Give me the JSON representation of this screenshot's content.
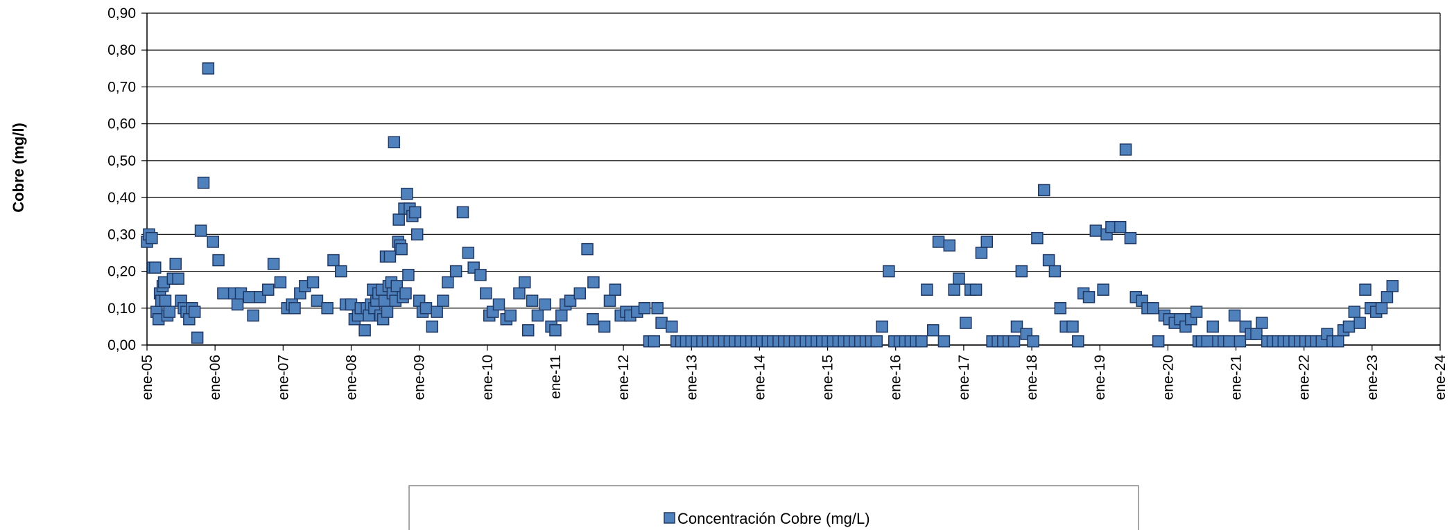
{
  "chart_data": {
    "type": "scatter",
    "ylabel": "Cobre (mg/l)",
    "xlabel": "",
    "ylim": [
      0,
      0.9
    ],
    "y_tick_labels": [
      "0,00",
      "0,10",
      "0,20",
      "0,30",
      "0,40",
      "0,50",
      "0,60",
      "0,70",
      "0,80",
      "0,90"
    ],
    "x_tick_labels": [
      "ene-05",
      "ene-06",
      "ene-07",
      "ene-08",
      "ene-09",
      "ene-10",
      "ene-11",
      "ene-12",
      "ene-13",
      "ene-14",
      "ene-15",
      "ene-16",
      "ene-17",
      "ene-18",
      "ene-19",
      "ene-20",
      "ene-21",
      "ene-22",
      "ene-23",
      "ene-24"
    ],
    "x_axis_start_year": 2005,
    "x_axis_end_year": 2024,
    "grid": "horizontal",
    "legend_position": "bottom",
    "colors": {
      "marker_fill": "#4f81bd",
      "marker_stroke": "#1f3864",
      "grid": "#000000"
    },
    "series": [
      {
        "name": "Concentración Cobre (mg/L)",
        "points": [
          [
            2005.0,
            0.28
          ],
          [
            2005.03,
            0.3
          ],
          [
            2005.07,
            0.29
          ],
          [
            2005.09,
            0.21
          ],
          [
            2005.12,
            0.21
          ],
          [
            2005.14,
            0.09
          ],
          [
            2005.17,
            0.07
          ],
          [
            2005.19,
            0.14
          ],
          [
            2005.21,
            0.12
          ],
          [
            2005.23,
            0.16
          ],
          [
            2005.25,
            0.17
          ],
          [
            2005.27,
            0.12
          ],
          [
            2005.3,
            0.08
          ],
          [
            2005.33,
            0.09
          ],
          [
            2005.38,
            0.18
          ],
          [
            2005.42,
            0.22
          ],
          [
            2005.46,
            0.18
          ],
          [
            2005.5,
            0.12
          ],
          [
            2005.54,
            0.1
          ],
          [
            2005.58,
            0.09
          ],
          [
            2005.62,
            0.07
          ],
          [
            2005.66,
            0.1
          ],
          [
            2005.7,
            0.09
          ],
          [
            2005.74,
            0.02
          ],
          [
            2005.79,
            0.31
          ],
          [
            2005.83,
            0.44
          ],
          [
            2005.9,
            0.75
          ],
          [
            2005.97,
            0.28
          ],
          [
            2006.05,
            0.23
          ],
          [
            2006.12,
            0.14
          ],
          [
            2006.28,
            0.14
          ],
          [
            2006.33,
            0.11
          ],
          [
            2006.38,
            0.14
          ],
          [
            2006.5,
            0.13
          ],
          [
            2006.56,
            0.08
          ],
          [
            2006.66,
            0.13
          ],
          [
            2006.78,
            0.15
          ],
          [
            2006.86,
            0.22
          ],
          [
            2006.96,
            0.17
          ],
          [
            2007.06,
            0.1
          ],
          [
            2007.13,
            0.11
          ],
          [
            2007.17,
            0.1
          ],
          [
            2007.25,
            0.14
          ],
          [
            2007.32,
            0.16
          ],
          [
            2007.44,
            0.17
          ],
          [
            2007.5,
            0.12
          ],
          [
            2007.65,
            0.1
          ],
          [
            2007.74,
            0.23
          ],
          [
            2007.85,
            0.2
          ],
          [
            2007.92,
            0.11
          ],
          [
            2008.0,
            0.11
          ],
          [
            2008.05,
            0.07
          ],
          [
            2008.1,
            0.08
          ],
          [
            2008.14,
            0.1
          ],
          [
            2008.2,
            0.04
          ],
          [
            2008.23,
            0.1
          ],
          [
            2008.26,
            0.08
          ],
          [
            2008.29,
            0.11
          ],
          [
            2008.32,
            0.15
          ],
          [
            2008.34,
            0.1
          ],
          [
            2008.37,
            0.12
          ],
          [
            2008.4,
            0.14
          ],
          [
            2008.43,
            0.08
          ],
          [
            2008.45,
            0.15
          ],
          [
            2008.47,
            0.07
          ],
          [
            2008.49,
            0.12
          ],
          [
            2008.51,
            0.24
          ],
          [
            2008.53,
            0.09
          ],
          [
            2008.55,
            0.16
          ],
          [
            2008.57,
            0.24
          ],
          [
            2008.59,
            0.17
          ],
          [
            2008.61,
            0.14
          ],
          [
            2008.63,
            0.55
          ],
          [
            2008.65,
            0.12
          ],
          [
            2008.67,
            0.16
          ],
          [
            2008.69,
            0.28
          ],
          [
            2008.7,
            0.34
          ],
          [
            2008.72,
            0.27
          ],
          [
            2008.74,
            0.26
          ],
          [
            2008.76,
            0.13
          ],
          [
            2008.78,
            0.37
          ],
          [
            2008.8,
            0.14
          ],
          [
            2008.82,
            0.41
          ],
          [
            2008.84,
            0.19
          ],
          [
            2008.86,
            0.37
          ],
          [
            2008.9,
            0.35
          ],
          [
            2008.94,
            0.36
          ],
          [
            2008.97,
            0.3
          ],
          [
            2009.0,
            0.12
          ],
          [
            2009.05,
            0.09
          ],
          [
            2009.1,
            0.1
          ],
          [
            2009.19,
            0.05
          ],
          [
            2009.26,
            0.09
          ],
          [
            2009.35,
            0.12
          ],
          [
            2009.42,
            0.17
          ],
          [
            2009.54,
            0.2
          ],
          [
            2009.64,
            0.36
          ],
          [
            2009.72,
            0.25
          ],
          [
            2009.8,
            0.21
          ],
          [
            2009.9,
            0.19
          ],
          [
            2009.98,
            0.14
          ],
          [
            2010.03,
            0.08
          ],
          [
            2010.08,
            0.09
          ],
          [
            2010.17,
            0.11
          ],
          [
            2010.28,
            0.07
          ],
          [
            2010.34,
            0.08
          ],
          [
            2010.47,
            0.14
          ],
          [
            2010.55,
            0.17
          ],
          [
            2010.6,
            0.04
          ],
          [
            2010.66,
            0.12
          ],
          [
            2010.74,
            0.08
          ],
          [
            2010.85,
            0.11
          ],
          [
            2010.94,
            0.05
          ],
          [
            2011.0,
            0.04
          ],
          [
            2011.09,
            0.08
          ],
          [
            2011.15,
            0.11
          ],
          [
            2011.22,
            0.12
          ],
          [
            2011.36,
            0.14
          ],
          [
            2011.47,
            0.26
          ],
          [
            2011.55,
            0.07
          ],
          [
            2011.56,
            0.17
          ],
          [
            2011.72,
            0.05
          ],
          [
            2011.8,
            0.12
          ],
          [
            2011.88,
            0.15
          ],
          [
            2011.96,
            0.08
          ],
          [
            2012.04,
            0.09
          ],
          [
            2012.1,
            0.08
          ],
          [
            2012.2,
            0.09
          ],
          [
            2012.31,
            0.1
          ],
          [
            2012.38,
            0.01
          ],
          [
            2012.45,
            0.01
          ],
          [
            2012.5,
            0.1
          ],
          [
            2012.56,
            0.06
          ],
          [
            2012.71,
            0.05
          ],
          [
            2012.78,
            0.01
          ],
          [
            2012.85,
            0.01
          ],
          [
            2012.92,
            0.01
          ],
          [
            2013.0,
            0.01
          ],
          [
            2013.08,
            0.01
          ],
          [
            2013.16,
            0.01
          ],
          [
            2013.24,
            0.01
          ],
          [
            2013.32,
            0.01
          ],
          [
            2013.4,
            0.01
          ],
          [
            2013.48,
            0.01
          ],
          [
            2013.56,
            0.01
          ],
          [
            2013.64,
            0.01
          ],
          [
            2013.72,
            0.01
          ],
          [
            2013.8,
            0.01
          ],
          [
            2013.88,
            0.01
          ],
          [
            2013.96,
            0.01
          ],
          [
            2014.04,
            0.01
          ],
          [
            2014.12,
            0.01
          ],
          [
            2014.2,
            0.01
          ],
          [
            2014.28,
            0.01
          ],
          [
            2014.36,
            0.01
          ],
          [
            2014.44,
            0.01
          ],
          [
            2014.52,
            0.01
          ],
          [
            2014.6,
            0.01
          ],
          [
            2014.68,
            0.01
          ],
          [
            2014.76,
            0.01
          ],
          [
            2014.84,
            0.01
          ],
          [
            2014.92,
            0.01
          ],
          [
            2015.0,
            0.01
          ],
          [
            2015.08,
            0.01
          ],
          [
            2015.16,
            0.01
          ],
          [
            2015.24,
            0.01
          ],
          [
            2015.32,
            0.01
          ],
          [
            2015.4,
            0.01
          ],
          [
            2015.48,
            0.01
          ],
          [
            2015.56,
            0.01
          ],
          [
            2015.64,
            0.01
          ],
          [
            2015.72,
            0.01
          ],
          [
            2015.8,
            0.05
          ],
          [
            2015.9,
            0.2
          ],
          [
            2015.98,
            0.01
          ],
          [
            2016.06,
            0.01
          ],
          [
            2016.14,
            0.01
          ],
          [
            2016.22,
            0.01
          ],
          [
            2016.3,
            0.01
          ],
          [
            2016.38,
            0.01
          ],
          [
            2016.46,
            0.15
          ],
          [
            2016.55,
            0.04
          ],
          [
            2016.63,
            0.28
          ],
          [
            2016.71,
            0.01
          ],
          [
            2016.79,
            0.27
          ],
          [
            2016.86,
            0.15
          ],
          [
            2016.93,
            0.18
          ],
          [
            2017.03,
            0.06
          ],
          [
            2017.1,
            0.15
          ],
          [
            2017.18,
            0.15
          ],
          [
            2017.26,
            0.25
          ],
          [
            2017.34,
            0.28
          ],
          [
            2017.42,
            0.01
          ],
          [
            2017.5,
            0.01
          ],
          [
            2017.58,
            0.01
          ],
          [
            2017.66,
            0.01
          ],
          [
            2017.74,
            0.01
          ],
          [
            2017.78,
            0.05
          ],
          [
            2017.85,
            0.2
          ],
          [
            2017.92,
            0.03
          ],
          [
            2018.02,
            0.01
          ],
          [
            2018.08,
            0.29
          ],
          [
            2018.18,
            0.42
          ],
          [
            2018.25,
            0.23
          ],
          [
            2018.34,
            0.2
          ],
          [
            2018.42,
            0.1
          ],
          [
            2018.5,
            0.05
          ],
          [
            2018.6,
            0.05
          ],
          [
            2018.68,
            0.01
          ],
          [
            2018.76,
            0.14
          ],
          [
            2018.84,
            0.13
          ],
          [
            2018.94,
            0.31
          ],
          [
            2019.05,
            0.15
          ],
          [
            2019.1,
            0.3
          ],
          [
            2019.17,
            0.32
          ],
          [
            2019.3,
            0.32
          ],
          [
            2019.38,
            0.53
          ],
          [
            2019.45,
            0.29
          ],
          [
            2019.53,
            0.13
          ],
          [
            2019.62,
            0.12
          ],
          [
            2019.7,
            0.1
          ],
          [
            2019.78,
            0.1
          ],
          [
            2019.86,
            0.01
          ],
          [
            2019.95,
            0.08
          ],
          [
            2020.02,
            0.07
          ],
          [
            2020.1,
            0.06
          ],
          [
            2020.18,
            0.07
          ],
          [
            2020.26,
            0.05
          ],
          [
            2020.34,
            0.07
          ],
          [
            2020.42,
            0.09
          ],
          [
            2020.45,
            0.01
          ],
          [
            2020.5,
            0.01
          ],
          [
            2020.58,
            0.01
          ],
          [
            2020.66,
            0.05
          ],
          [
            2020.74,
            0.01
          ],
          [
            2020.82,
            0.01
          ],
          [
            2020.9,
            0.01
          ],
          [
            2020.98,
            0.08
          ],
          [
            2021.06,
            0.01
          ],
          [
            2021.14,
            0.05
          ],
          [
            2021.22,
            0.03
          ],
          [
            2021.3,
            0.03
          ],
          [
            2021.38,
            0.06
          ],
          [
            2021.46,
            0.01
          ],
          [
            2021.54,
            0.01
          ],
          [
            2021.62,
            0.01
          ],
          [
            2021.7,
            0.01
          ],
          [
            2021.78,
            0.01
          ],
          [
            2021.86,
            0.01
          ],
          [
            2021.94,
            0.01
          ],
          [
            2022.02,
            0.01
          ],
          [
            2022.1,
            0.01
          ],
          [
            2022.18,
            0.01
          ],
          [
            2022.26,
            0.01
          ],
          [
            2022.34,
            0.03
          ],
          [
            2022.42,
            0.01
          ],
          [
            2022.5,
            0.01
          ],
          [
            2022.58,
            0.04
          ],
          [
            2022.66,
            0.05
          ],
          [
            2022.74,
            0.09
          ],
          [
            2022.82,
            0.06
          ],
          [
            2022.9,
            0.15
          ],
          [
            2022.98,
            0.1
          ],
          [
            2023.06,
            0.09
          ],
          [
            2023.14,
            0.1
          ],
          [
            2023.22,
            0.13
          ],
          [
            2023.3,
            0.16
          ]
        ]
      }
    ]
  }
}
